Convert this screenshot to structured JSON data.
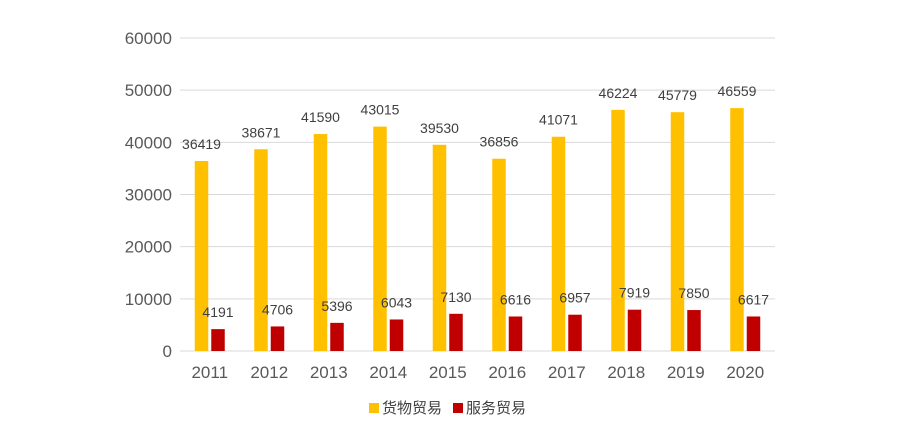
{
  "chart_data": {
    "type": "bar",
    "title": "",
    "xlabel": "",
    "ylabel": "",
    "categories": [
      "2011",
      "2012",
      "2013",
      "2014",
      "2015",
      "2016",
      "2017",
      "2018",
      "2019",
      "2020"
    ],
    "series": [
      {
        "name": "货物贸易",
        "color": "#FFC000",
        "values": [
          36419,
          38671,
          41590,
          43015,
          39530,
          36856,
          41071,
          46224,
          45779,
          46559
        ]
      },
      {
        "name": "服务贸易",
        "color": "#C00000",
        "values": [
          4191,
          4706,
          5396,
          6043,
          7130,
          6616,
          6957,
          7919,
          7850,
          6617
        ]
      }
    ],
    "ylim": [
      0,
      60000
    ],
    "yticks": [
      0,
      10000,
      20000,
      30000,
      40000,
      50000,
      60000
    ],
    "grid": true,
    "legend": "bottom",
    "data_labels": true
  }
}
